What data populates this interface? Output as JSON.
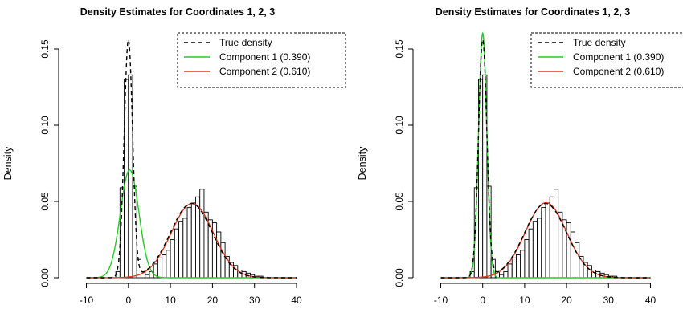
{
  "figure": {
    "colors": {
      "bars_fill": "#ffffff",
      "bars_stroke": "#000000",
      "true_density": "#000000",
      "component_1": "#22cc22",
      "component_2": "#e03a1e"
    }
  },
  "chart_data": [
    {
      "type": "bar",
      "title": "Density Estimates for Coordinates 1, 2, 3",
      "xlabel": "",
      "ylabel": "Density",
      "xlim": [
        -12,
        42
      ],
      "ylim": [
        0,
        0.16
      ],
      "xticks": [
        "-10",
        "0",
        "10",
        "20",
        "30",
        "40"
      ],
      "yticks": [
        "0.00",
        "0.05",
        "0.10",
        "0.15"
      ],
      "grid": false,
      "legend_position": "top-right",
      "legend": [
        {
          "label": "True density",
          "style": "dashed",
          "color": "#000000"
        },
        {
          "label": "Component 1 (0.390)",
          "style": "solid",
          "color": "#22cc22"
        },
        {
          "label": "Component 2 (0.610)",
          "style": "solid",
          "color": "#e03a1e"
        }
      ],
      "histogram": {
        "bin_width": 1,
        "bin_starts": [
          -3,
          -2,
          -1,
          0,
          1,
          2,
          3,
          4,
          5,
          6,
          7,
          8,
          9,
          10,
          11,
          12,
          13,
          14,
          15,
          16,
          17,
          18,
          19,
          20,
          21,
          22,
          23,
          24,
          25,
          26,
          27,
          28,
          29,
          30,
          31
        ],
        "density": [
          0.004,
          0.059,
          0.13,
          0.133,
          0.06,
          0.012,
          0.004,
          0.002,
          0.004,
          0.009,
          0.013,
          0.015,
          0.018,
          0.025,
          0.032,
          0.037,
          0.039,
          0.046,
          0.049,
          0.053,
          0.058,
          0.043,
          0.038,
          0.036,
          0.03,
          0.023,
          0.014,
          0.01,
          0.008,
          0.005,
          0.004,
          0.003,
          0.002,
          0.001,
          0.001
        ]
      },
      "curves": [
        {
          "name": "True density",
          "type": "mixture",
          "components": [
            {
              "weight": 0.39,
              "mean": 0,
              "sd": 1
            },
            {
              "weight": 0.61,
              "mean": 15,
              "sd": 5
            }
          ]
        },
        {
          "name": "Component 1 (0.390)",
          "type": "mixture",
          "components": [
            {
              "weight": 0.39,
              "mean": 0.3,
              "sd": 2.2
            }
          ]
        },
        {
          "name": "Component 2 (0.610)",
          "type": "mixture",
          "components": [
            {
              "weight": 0.61,
              "mean": 15.2,
              "sd": 5
            }
          ]
        }
      ]
    },
    {
      "type": "bar",
      "title": "Density Estimates for Coordinates 1, 2, 3",
      "xlabel": "",
      "ylabel": "Density",
      "xlim": [
        -12,
        42
      ],
      "ylim": [
        0,
        0.16
      ],
      "xticks": [
        "-10",
        "0",
        "10",
        "20",
        "30",
        "40"
      ],
      "yticks": [
        "0.00",
        "0.05",
        "0.10",
        "0.15"
      ],
      "grid": false,
      "legend_position": "top-right",
      "legend": [
        {
          "label": "True density",
          "style": "dashed",
          "color": "#000000"
        },
        {
          "label": "Component 1 (0.390)",
          "style": "solid",
          "color": "#22cc22"
        },
        {
          "label": "Component 2 (0.610)",
          "style": "solid",
          "color": "#e03a1e"
        }
      ],
      "histogram": {
        "bin_width": 1,
        "bin_starts": [
          -3,
          -2,
          -1,
          0,
          1,
          2,
          3,
          4,
          5,
          6,
          7,
          8,
          9,
          10,
          11,
          12,
          13,
          14,
          15,
          16,
          17,
          18,
          19,
          20,
          21,
          22,
          23,
          24,
          25,
          26,
          27,
          28,
          29,
          30,
          31
        ],
        "density": [
          0.004,
          0.059,
          0.13,
          0.133,
          0.06,
          0.012,
          0.004,
          0.002,
          0.004,
          0.009,
          0.013,
          0.015,
          0.018,
          0.025,
          0.032,
          0.037,
          0.039,
          0.046,
          0.049,
          0.053,
          0.058,
          0.043,
          0.038,
          0.036,
          0.03,
          0.023,
          0.014,
          0.01,
          0.008,
          0.005,
          0.004,
          0.003,
          0.002,
          0.001,
          0.001
        ]
      },
      "curves": [
        {
          "name": "True density",
          "type": "mixture",
          "components": [
            {
              "weight": 0.39,
              "mean": 0,
              "sd": 1
            },
            {
              "weight": 0.61,
              "mean": 15,
              "sd": 5
            }
          ]
        },
        {
          "name": "Component 1 (0.390)",
          "type": "mixture",
          "components": [
            {
              "weight": 0.39,
              "mean": 0,
              "sd": 0.97
            }
          ]
        },
        {
          "name": "Component 2 (0.610)",
          "type": "mixture",
          "components": [
            {
              "weight": 0.61,
              "mean": 15.1,
              "sd": 4.95
            }
          ]
        }
      ]
    }
  ]
}
